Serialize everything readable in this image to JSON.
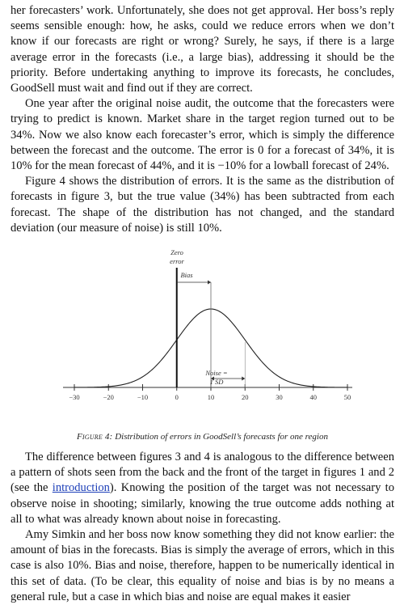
{
  "paragraphs_top": [
    "her forecasters’ work. Unfortunately, she does not get approval. Her boss’s reply seems sensible enough: how, he asks, could we reduce errors when we don’t know if our forecasts are right or wrong? Surely, he says, if there is a large average error in the forecasts (i.e., a large bias), addressing it should be the priority. Before undertaking anything to improve its forecasts, he concludes, GoodSell must wait and find out if they are correct.",
    "One year after the original noise audit, the outcome that the forecasters were trying to predict is known. Market share in the target region turned out to be 34%. Now we also know each forecaster’s error, which is simply the difference between the forecast and the outcome. The error is 0 for a forecast of 34%, it is 10% for the mean forecast of 44%, and it is −10% for a lowball forecast of 24%.",
    "Figure 4 shows the distribution of errors. It is the same as the distribution of forecasts in figure 3, but the true value (34%) has been subtracted from each forecast. The shape of the distribution has not changed, and the standard deviation (our measure of noise) is still 10%."
  ],
  "figure": {
    "zero_label_line1": "Zero",
    "zero_label_line2": "error",
    "bias_label": "Bias",
    "noise_label_line1": "Noise =",
    "noise_label_line2": "1 SD",
    "caption_label": "Figure 4:",
    "caption_text": " Distribution of errors in GoodSell’s forecasts for one region"
  },
  "chart_data": {
    "type": "area",
    "title": "",
    "xlabel": "",
    "ylabel": "",
    "x_ticks": [
      -30,
      -20,
      -10,
      0,
      10,
      20,
      30,
      40,
      50
    ],
    "xlim": [
      -30,
      50
    ],
    "distribution": {
      "kind": "normal",
      "mean": 10,
      "sd": 10
    },
    "markers": {
      "zero_error": 0,
      "bias": 10,
      "noise_sd": 10
    }
  },
  "paragraphs_bottom_1_before_link": "The difference between figures 3 and 4 is analogous to the difference between a pattern of shots seen from the back and the front of the target in figures 1 and 2 (see the ",
  "paragraphs_bottom_1_link": "introduction",
  "paragraphs_bottom_1_after_link": "). Knowing the position of the target was not necessary to observe noise in shooting; similarly, knowing the true outcome adds nothing at all to what was already known about noise in forecasting.",
  "paragraphs_bottom_2": "Amy Simkin and her boss now know something they did not know earlier: the amount of bias in the forecasts. Bias is simply the average of errors, which in this case is also 10%. Bias and noise, therefore, happen to be numerically identical in this set of data. (To be clear, this equality of noise and bias is by no means a general rule, but a case in which bias and noise are equal makes it easier"
}
